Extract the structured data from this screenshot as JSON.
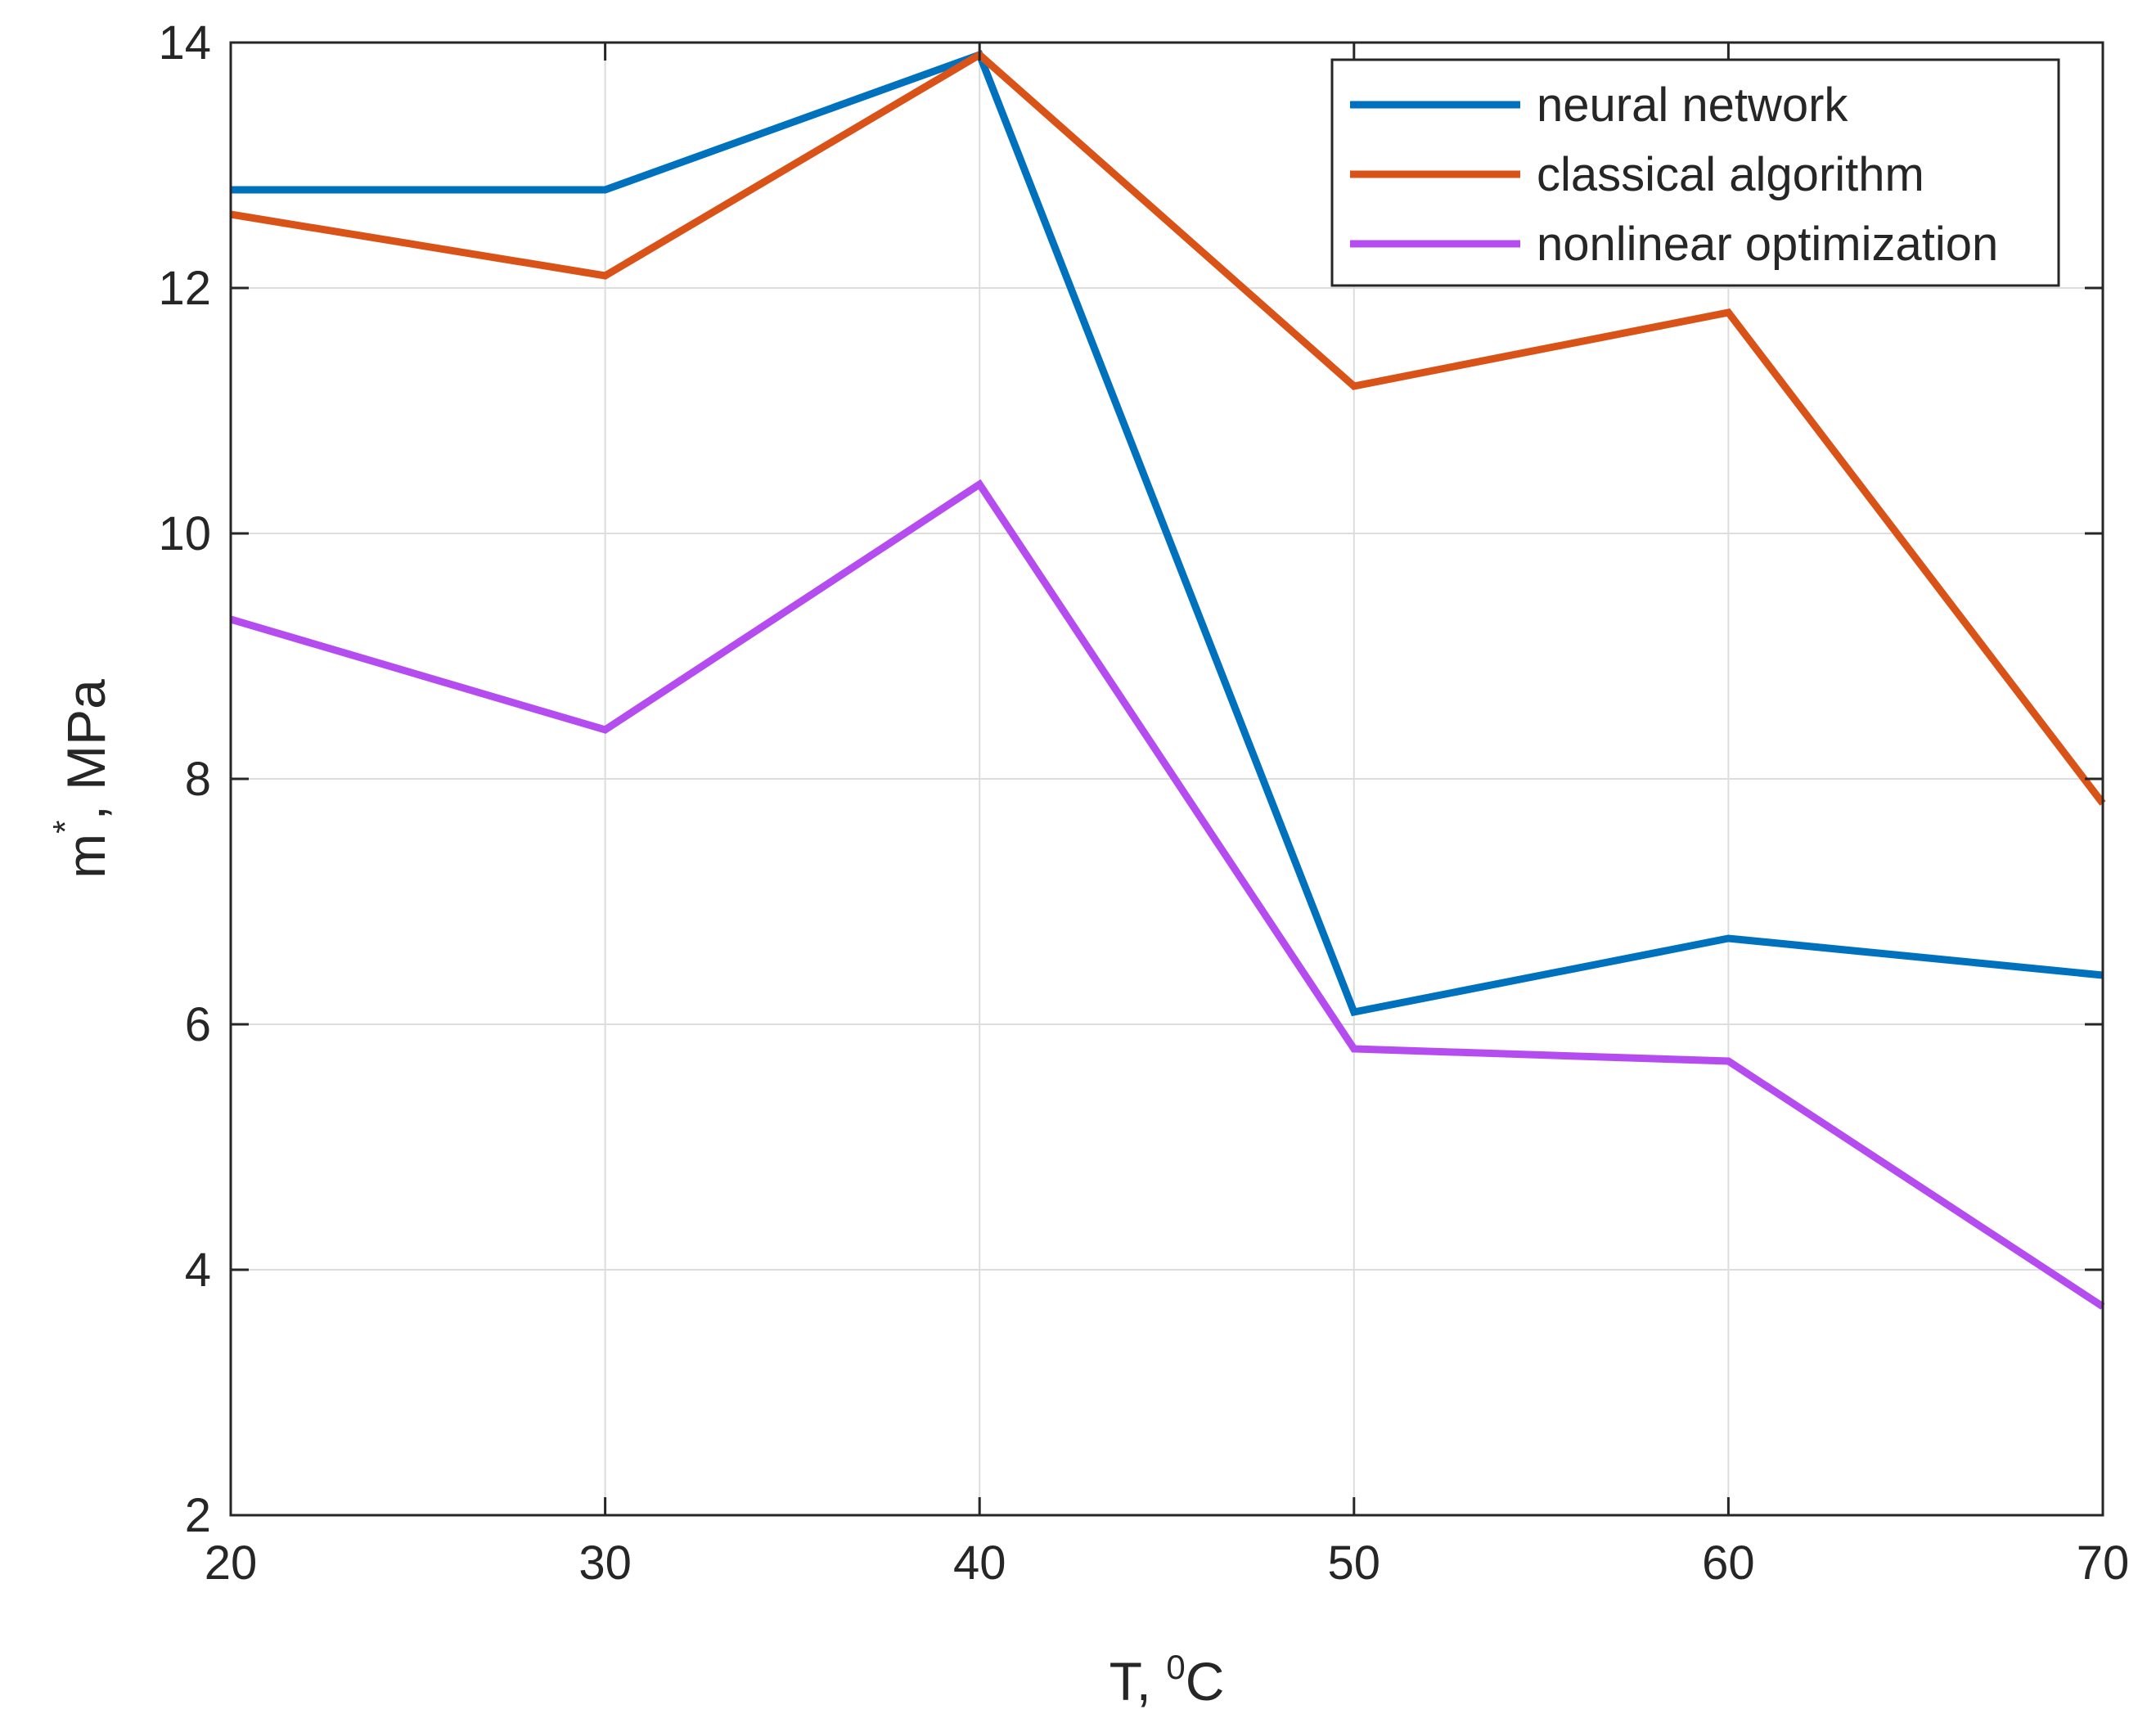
{
  "chart_data": {
    "type": "line",
    "title": "",
    "xlabel": "T, ",
    "xlabel_sup": "0",
    "xlabel_unit": "C",
    "ylabel_main": "m",
    "ylabel_sup": "*",
    "ylabel_unit": ", MPa",
    "xlim": [
      20,
      70
    ],
    "ylim": [
      2,
      14
    ],
    "x_ticks": [
      20,
      30,
      40,
      50,
      60,
      70
    ],
    "y_ticks": [
      2,
      4,
      6,
      8,
      10,
      12,
      14
    ],
    "x_tick_labels": [
      "20",
      "30",
      "40",
      "50",
      "60",
      "70"
    ],
    "y_tick_labels": [
      "2",
      "4",
      "6",
      "8",
      "10",
      "12",
      "14"
    ],
    "grid": true,
    "legend_position": "top-right",
    "x": [
      20,
      30,
      40,
      50,
      60,
      70
    ],
    "series": [
      {
        "name": "neural network",
        "color": "#0072BD",
        "values": [
          12.8,
          12.8,
          13.9,
          6.1,
          6.7,
          6.4
        ]
      },
      {
        "name": "classical algorithm",
        "color": "#D95319",
        "values": [
          12.6,
          12.1,
          13.9,
          11.2,
          11.8,
          7.8
        ]
      },
      {
        "name": "nonlinear optimization",
        "color": "#B54CF0",
        "values": [
          9.3,
          8.4,
          10.4,
          5.8,
          5.7,
          3.7
        ]
      }
    ]
  }
}
